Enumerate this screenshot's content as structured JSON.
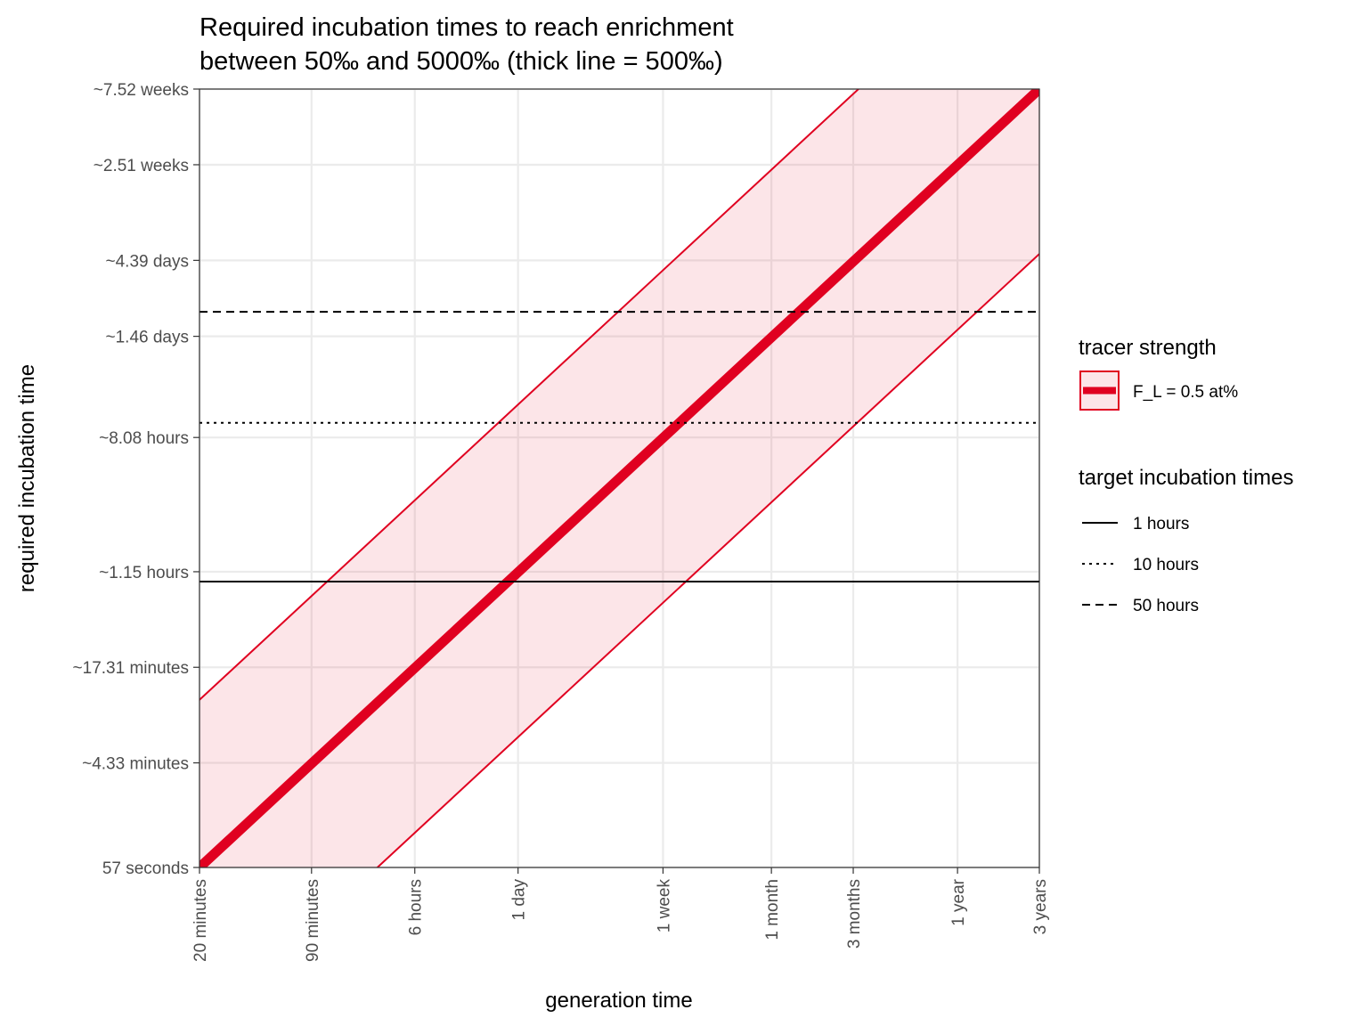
{
  "chart_data": {
    "type": "line",
    "title_lines": [
      "Required incubation times to reach enrichment",
      "between 50‰ and 5000‰ (thick line = 500‰)"
    ],
    "xlabel": "generation time",
    "ylabel": "required incubation time",
    "x_scale": "log",
    "y_scale": "log",
    "x_unit": "minutes",
    "y_unit": "minutes",
    "xlim": [
      20,
      1576800
    ],
    "ylim": [
      0.95,
      75800
    ],
    "x_ticks": [
      {
        "label": "20 minutes",
        "value": 20
      },
      {
        "label": "90 minutes",
        "value": 90
      },
      {
        "label": "6 hours",
        "value": 360
      },
      {
        "label": "1 day",
        "value": 1440
      },
      {
        "label": "1 week",
        "value": 10080
      },
      {
        "label": "1 month",
        "value": 43200
      },
      {
        "label": "3 months",
        "value": 129600
      },
      {
        "label": "1 year",
        "value": 525600
      },
      {
        "label": "3 years",
        "value": 1576800
      }
    ],
    "y_ticks": [
      {
        "label": "57 seconds",
        "value": 0.95
      },
      {
        "label": "~4.33 minutes",
        "value": 4.33
      },
      {
        "label": "~17.31 minutes",
        "value": 17.31
      },
      {
        "label": "~1.15 hours",
        "value": 69.2
      },
      {
        "label": "~8.08 hours",
        "value": 484.8
      },
      {
        "label": "~1.46 days",
        "value": 2102
      },
      {
        "label": "~4.39 days",
        "value": 6322
      },
      {
        "label": "~2.51 weeks",
        "value": 25300
      },
      {
        "label": "~7.52 weeks",
        "value": 75800
      }
    ],
    "series": [
      {
        "name": "F_L = 0.5 at%",
        "color": "#e00020",
        "x": [
          20,
          1576800
        ],
        "y": [
          0.95,
          75800
        ],
        "y_lower": [
          0.087,
          6940
        ],
        "y_upper": [
          10.8,
          862000
        ]
      }
    ],
    "reference_lines": [
      {
        "name": "1 hours",
        "value": 60,
        "style": "solid"
      },
      {
        "name": "10 hours",
        "value": 600,
        "style": "dotted"
      },
      {
        "name": "50 hours",
        "value": 3000,
        "style": "dashed"
      }
    ],
    "grid": true,
    "legend": {
      "placement": "right",
      "groups": [
        {
          "title": "tracer strength",
          "entries": [
            "F_L = 0.5 at%"
          ]
        },
        {
          "title": "target incubation times",
          "entries": [
            "1 hours",
            "10 hours",
            "50 hours"
          ]
        }
      ]
    }
  }
}
